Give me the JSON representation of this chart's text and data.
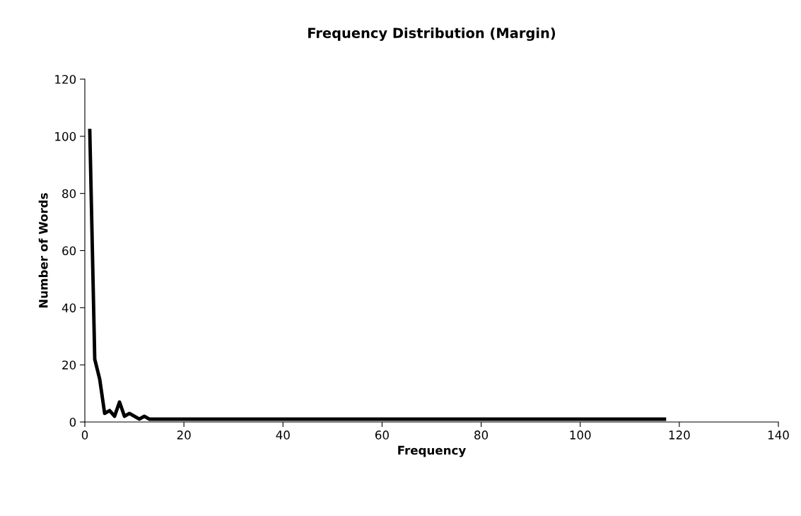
{
  "chart_data": {
    "type": "line",
    "title": "Frequency Distribution (Margin)",
    "xlabel": "Frequency",
    "ylabel": "Number of Words",
    "x": [
      1,
      2,
      3,
      4,
      5,
      6,
      7,
      8,
      9,
      10,
      11,
      12,
      13,
      14,
      15,
      117
    ],
    "series": [
      {
        "color": "#000000",
        "values": [
          102,
          22,
          15,
          3,
          4,
          2,
          7,
          2,
          3,
          2,
          1,
          2,
          1,
          1,
          1,
          1
        ]
      }
    ],
    "xlim": [
      0,
      140
    ],
    "xticks": [
      0,
      20,
      40,
      60,
      80,
      100,
      120,
      140
    ],
    "ylim": [
      0,
      120
    ],
    "yticks": [
      0,
      20,
      40,
      60,
      80,
      100,
      120
    ],
    "grid": false,
    "legend": false,
    "marker": "none",
    "line_style": "solid"
  }
}
